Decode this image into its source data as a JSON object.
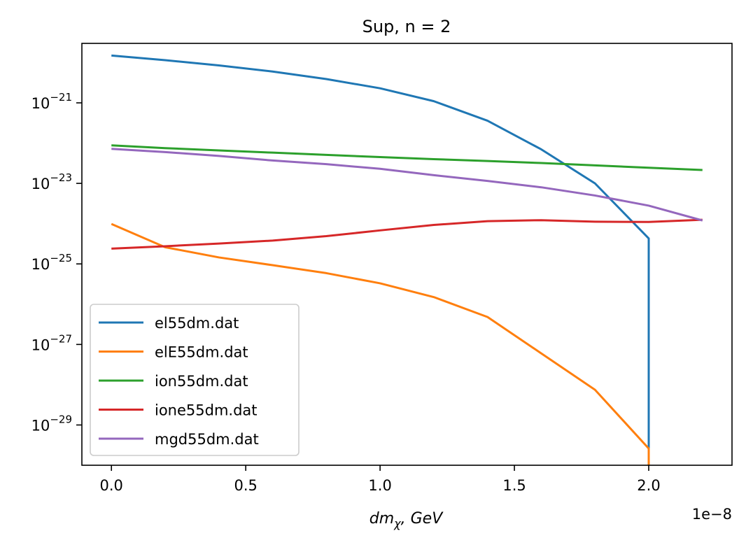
{
  "chart_data": {
    "type": "line",
    "title": "Sup, n = 2",
    "xlabel": "dm_χ, GeV",
    "ylabel": "",
    "x_offset_label": "1e−8",
    "xlim": [
      -1.1e-09,
      2.31e-08
    ],
    "ylim": [
      1e-30,
      3e-20
    ],
    "yscale": "log",
    "grid": false,
    "legend_position": "lower-left",
    "x_ticks": [
      {
        "value": 0.0,
        "label": "0.0"
      },
      {
        "value": 5e-09,
        "label": "0.5"
      },
      {
        "value": 1e-08,
        "label": "1.0"
      },
      {
        "value": 1.5e-08,
        "label": "1.5"
      },
      {
        "value": 2e-08,
        "label": "2.0"
      }
    ],
    "y_ticks": [
      {
        "value": 1e-21,
        "base": "10",
        "exp": "−21"
      },
      {
        "value": 1e-23,
        "base": "10",
        "exp": "−23"
      },
      {
        "value": 1e-25,
        "base": "10",
        "exp": "−25"
      },
      {
        "value": 1e-27,
        "base": "10",
        "exp": "−27"
      },
      {
        "value": 1e-29,
        "base": "10",
        "exp": "−29"
      }
    ],
    "series": [
      {
        "name": "el55dm.dat",
        "color": "#1f77b4",
        "x": [
          0,
          2e-09,
          4e-09,
          6e-09,
          8e-09,
          1e-08,
          1.2e-08,
          1.4e-08,
          1.6e-08,
          1.8e-08,
          2e-08,
          2e-08
        ],
        "y": [
          1.5e-20,
          1.15e-20,
          8.5e-21,
          6e-21,
          3.9e-21,
          2.3e-21,
          1.1e-21,
          3.6e-22,
          7e-23,
          1e-23,
          4.3e-25,
          1e-30
        ]
      },
      {
        "name": "elE55dm.dat",
        "color": "#ff7f0e",
        "x": [
          0,
          2e-09,
          4e-09,
          6e-09,
          8e-09,
          1e-08,
          1.2e-08,
          1.4e-08,
          1.6e-08,
          1.8e-08,
          2e-08,
          2e-08
        ],
        "y": [
          9.8e-25,
          2.6e-25,
          1.45e-25,
          9.3e-26,
          5.9e-26,
          3.3e-26,
          1.5e-26,
          4.8e-27,
          6e-28,
          7.5e-29,
          2.6e-30,
          1e-30
        ]
      },
      {
        "name": "ion55dm.dat",
        "color": "#2ca02c",
        "x": [
          0,
          2e-09,
          4e-09,
          6e-09,
          8e-09,
          1e-08,
          1.2e-08,
          1.4e-08,
          1.6e-08,
          1.8e-08,
          2e-08,
          2.2e-08
        ],
        "y": [
          8.8e-23,
          7.5e-23,
          6.6e-23,
          5.8e-23,
          5.1e-23,
          4.5e-23,
          4e-23,
          3.6e-23,
          3.2e-23,
          2.8e-23,
          2.45e-23,
          2.15e-23
        ]
      },
      {
        "name": "ione55dm.dat",
        "color": "#d62728",
        "x": [
          0,
          2e-09,
          4e-09,
          6e-09,
          8e-09,
          1e-08,
          1.2e-08,
          1.4e-08,
          1.6e-08,
          1.8e-08,
          2e-08,
          2.2e-08
        ],
        "y": [
          2.4e-25,
          2.75e-25,
          3.2e-25,
          3.8e-25,
          4.9e-25,
          6.8e-25,
          9.3e-25,
          1.15e-24,
          1.22e-24,
          1.12e-24,
          1.1e-24,
          1.25e-24
        ]
      },
      {
        "name": "mgd55dm.dat",
        "color": "#9467bd",
        "x": [
          0,
          2e-09,
          4e-09,
          6e-09,
          8e-09,
          1e-08,
          1.2e-08,
          1.4e-08,
          1.6e-08,
          1.8e-08,
          2e-08,
          2.2e-08
        ],
        "y": [
          7.2e-23,
          6e-23,
          4.8e-23,
          3.7e-23,
          3e-23,
          2.3e-23,
          1.6e-23,
          1.15e-23,
          8e-24,
          5e-24,
          2.8e-24,
          1.2e-24
        ]
      }
    ]
  }
}
